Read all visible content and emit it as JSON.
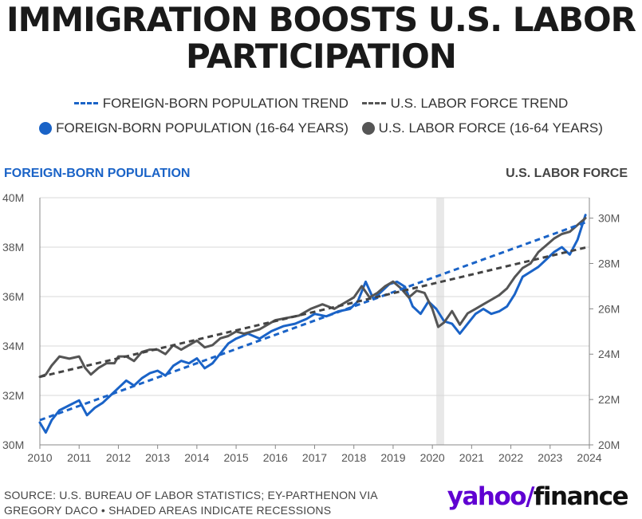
{
  "title_line1": "IMMIGRATION BOOSTS U.S. LABOR",
  "title_line2": "PARTICIPATION",
  "legend": {
    "fb_trend": "FOREIGN-BORN POPULATION TREND",
    "lf_trend": "U.S. LABOR FORCE TREND",
    "fb_series": "FOREIGN-BORN POPULATION (16-64 YEARS)",
    "lf_series": "U.S. LABOR FORCE (16-64 YEARS)"
  },
  "left_axis_title": "FOREIGN-BORN POPULATION",
  "right_axis_title": "U.S. LABOR FORCE",
  "source_line1": "SOURCE: U.S. BUREAU OF LABOR STATISTICS; EY-PARTHENON VIA",
  "source_line2": "GREGORY DACO • SHADED AREAS INDICATE RECESSIONS",
  "brand": {
    "yahoo": "yahoo",
    "slash": "/",
    "finance": "finance"
  },
  "colors": {
    "blue": "#1a63c7",
    "gray": "#555555",
    "brand_purple": "#6001d2",
    "recession": "#e8e8e8"
  },
  "chart_data": {
    "type": "line",
    "x_ticks": [
      "2010",
      "2011",
      "2012",
      "2013",
      "2014",
      "2015",
      "2016",
      "2017",
      "2018",
      "2019",
      "2020",
      "2021",
      "2022",
      "2023",
      "2024"
    ],
    "xlim": [
      2010,
      2024
    ],
    "y_left": {
      "label": "FOREIGN-BORN POPULATION",
      "ticks": [
        "30M",
        "32M",
        "34M",
        "36M",
        "38M",
        "40M"
      ],
      "tick_values": [
        30,
        32,
        34,
        36,
        38,
        40
      ],
      "lim": [
        30,
        40
      ]
    },
    "y_right": {
      "label": "U.S. LABOR FORCE",
      "ticks": [
        "20M",
        "22M",
        "24M",
        "26M",
        "28M",
        "30M"
      ],
      "tick_values": [
        20,
        22,
        24,
        26,
        28,
        30
      ],
      "lim": [
        20,
        30.9
      ]
    },
    "recession": [
      2020.1,
      2020.3
    ],
    "series": [
      {
        "name": "FOREIGN-BORN POPULATION (16-64 YEARS)",
        "axis": "left",
        "x": [
          2010.0,
          2010.15,
          2010.3,
          2010.5,
          2010.75,
          2011.0,
          2011.2,
          2011.4,
          2011.6,
          2011.8,
          2012.0,
          2012.2,
          2012.4,
          2012.6,
          2012.8,
          2013.0,
          2013.2,
          2013.4,
          2013.6,
          2013.8,
          2014.0,
          2014.2,
          2014.4,
          2014.6,
          2014.8,
          2015.0,
          2015.3,
          2015.6,
          2015.9,
          2016.2,
          2016.5,
          2016.8,
          2017.0,
          2017.3,
          2017.6,
          2017.9,
          2018.1,
          2018.3,
          2018.5,
          2018.7,
          2018.9,
          2019.1,
          2019.3,
          2019.5,
          2019.7,
          2019.9,
          2020.1,
          2020.3,
          2020.5,
          2020.7,
          2020.9,
          2021.1,
          2021.3,
          2021.5,
          2021.7,
          2021.9,
          2022.1,
          2022.3,
          2022.5,
          2022.7,
          2022.9,
          2023.1,
          2023.3,
          2023.5,
          2023.7,
          2023.9
        ],
        "values": [
          30.9,
          30.5,
          31.0,
          31.4,
          31.6,
          31.8,
          31.2,
          31.5,
          31.7,
          32.0,
          32.3,
          32.6,
          32.4,
          32.7,
          32.9,
          33.0,
          32.8,
          33.2,
          33.4,
          33.3,
          33.5,
          33.1,
          33.3,
          33.7,
          34.1,
          34.3,
          34.5,
          34.3,
          34.6,
          34.8,
          34.9,
          35.1,
          35.3,
          35.2,
          35.4,
          35.5,
          35.8,
          36.6,
          35.9,
          36.2,
          36.5,
          36.6,
          36.4,
          35.6,
          35.3,
          35.8,
          35.5,
          35.0,
          34.9,
          34.5,
          34.9,
          35.3,
          35.5,
          35.3,
          35.4,
          35.6,
          36.1,
          36.8,
          37.0,
          37.2,
          37.5,
          37.8,
          38.0,
          37.7,
          38.3,
          39.3
        ]
      },
      {
        "name": "U.S. LABOR FORCE (16-64 YEARS)",
        "axis": "right",
        "x": [
          2010.0,
          2010.15,
          2010.3,
          2010.5,
          2010.75,
          2011.0,
          2011.15,
          2011.3,
          2011.5,
          2011.7,
          2011.9,
          2012.0,
          2012.2,
          2012.4,
          2012.6,
          2012.8,
          2013.0,
          2013.2,
          2013.4,
          2013.6,
          2013.8,
          2014.0,
          2014.2,
          2014.4,
          2014.6,
          2014.8,
          2015.0,
          2015.2,
          2015.4,
          2015.6,
          2015.8,
          2016.0,
          2016.3,
          2016.6,
          2016.9,
          2017.2,
          2017.5,
          2017.8,
          2018.0,
          2018.2,
          2018.4,
          2018.6,
          2018.8,
          2019.0,
          2019.2,
          2019.4,
          2019.6,
          2019.8,
          2020.0,
          2020.15,
          2020.3,
          2020.5,
          2020.7,
          2020.9,
          2021.1,
          2021.3,
          2021.5,
          2021.7,
          2021.9,
          2022.1,
          2022.3,
          2022.5,
          2022.7,
          2022.9,
          2023.1,
          2023.3,
          2023.5,
          2023.7,
          2023.9
        ],
        "values": [
          23.0,
          23.1,
          23.5,
          23.9,
          23.8,
          23.9,
          23.4,
          23.1,
          23.4,
          23.6,
          23.6,
          23.9,
          23.9,
          23.7,
          24.1,
          24.2,
          24.2,
          24.0,
          24.4,
          24.2,
          24.4,
          24.6,
          24.3,
          24.4,
          24.7,
          24.8,
          25.0,
          24.9,
          25.0,
          25.1,
          25.3,
          25.5,
          25.6,
          25.7,
          26.0,
          26.2,
          26.0,
          26.3,
          26.5,
          27.0,
          26.5,
          26.7,
          27.0,
          27.2,
          26.9,
          26.5,
          26.8,
          26.7,
          26.0,
          25.2,
          25.4,
          25.9,
          25.3,
          25.8,
          26.0,
          26.2,
          26.4,
          26.6,
          26.9,
          27.4,
          27.8,
          28.0,
          28.5,
          28.8,
          29.1,
          29.3,
          29.4,
          29.7,
          30.0
        ]
      }
    ],
    "trends": [
      {
        "name": "FOREIGN-BORN POPULATION TREND",
        "axis": "left",
        "x": [
          2010,
          2023.9
        ],
        "values": [
          31.0,
          39.0
        ]
      },
      {
        "name": "U.S. LABOR FORCE TREND",
        "axis": "right",
        "x": [
          2010,
          2023.9
        ],
        "values": [
          23.0,
          28.7
        ]
      }
    ]
  }
}
